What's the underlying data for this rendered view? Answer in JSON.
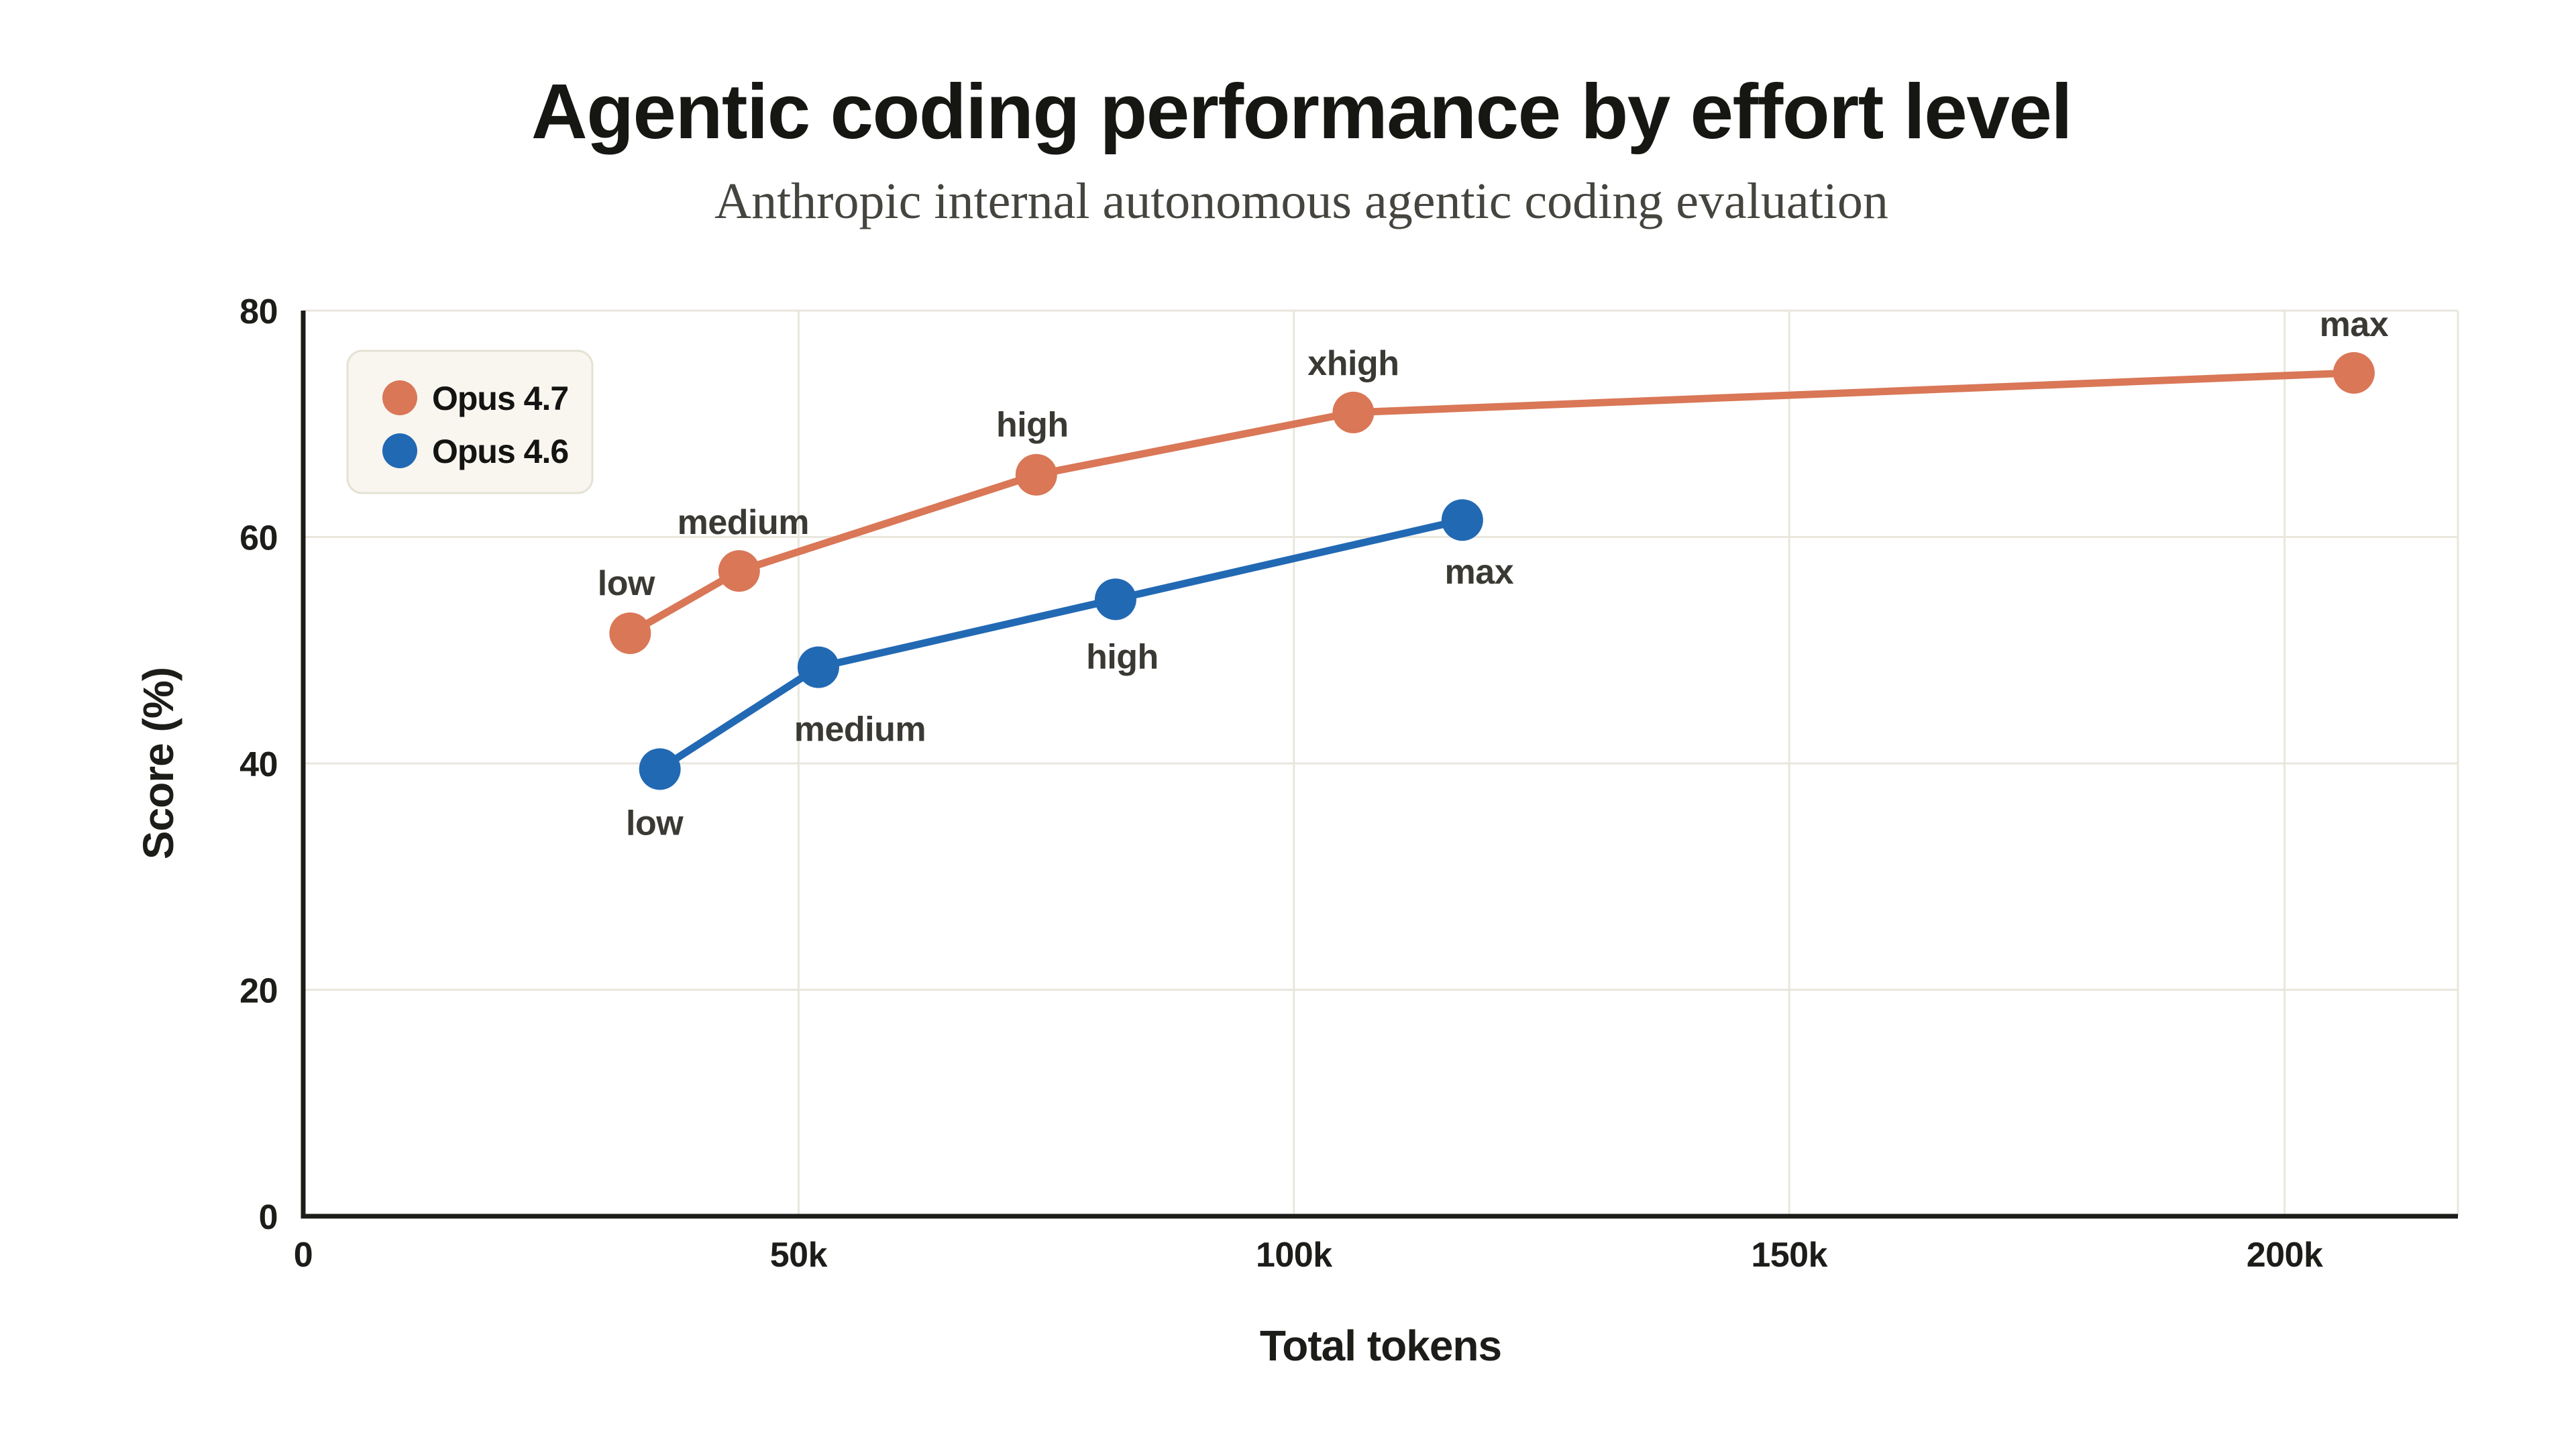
{
  "page": {
    "title": "Agentic coding performance by effort level",
    "subtitle": "Anthropic internal autonomous agentic coding evaluation"
  },
  "chart_data": {
    "type": "line",
    "title": "Agentic coding performance by effort level",
    "subtitle": "Anthropic internal autonomous agentic coding evaluation",
    "xlabel": "Total tokens",
    "ylabel": "Score (%)",
    "xlim": [
      0,
      217500
    ],
    "ylim": [
      0,
      80
    ],
    "grid": true,
    "x_ticks": [
      {
        "v": 0,
        "label": "0"
      },
      {
        "v": 50000,
        "label": "50k"
      },
      {
        "v": 100000,
        "label": "100k"
      },
      {
        "v": 150000,
        "label": "150k"
      },
      {
        "v": 200000,
        "label": "200k"
      }
    ],
    "y_ticks": [
      {
        "v": 0,
        "label": "0"
      },
      {
        "v": 20,
        "label": "20"
      },
      {
        "v": 40,
        "label": "40"
      },
      {
        "v": 60,
        "label": "60"
      },
      {
        "v": 80,
        "label": "80"
      }
    ],
    "legend": {
      "position": "upper-left",
      "entries": [
        {
          "name": "Opus 4.7",
          "color": "#d97757"
        },
        {
          "name": "Opus 4.6",
          "color": "#2269b4"
        }
      ]
    },
    "series": [
      {
        "name": "Opus 4.7",
        "color": "#d97757",
        "points": [
          {
            "x": 33000,
            "y": 51.5,
            "label": "low",
            "dx": -6,
            "dy": -75
          },
          {
            "x": 44000,
            "y": 57,
            "label": "medium",
            "dx": 6,
            "dy": -73
          },
          {
            "x": 74000,
            "y": 65.5,
            "label": "high",
            "dx": -6,
            "dy": -75
          },
          {
            "x": 106000,
            "y": 71,
            "label": "xhigh",
            "dx": 0,
            "dy": -74
          },
          {
            "x": 207000,
            "y": 74.5,
            "label": "max",
            "dx": 0,
            "dy": -73
          }
        ]
      },
      {
        "name": "Opus 4.6",
        "color": "#2269b4",
        "points": [
          {
            "x": 36000,
            "y": 39.5,
            "label": "low",
            "dx": -8,
            "dy": 80
          },
          {
            "x": 52000,
            "y": 48.5,
            "label": "medium",
            "dx": 62,
            "dy": 92
          },
          {
            "x": 82000,
            "y": 54.5,
            "label": "high",
            "dx": 10,
            "dy": 85
          },
          {
            "x": 117000,
            "y": 61.5,
            "label": "max",
            "dx": 25,
            "dy": 77
          }
        ]
      }
    ]
  },
  "colors": {
    "background": "#ffffff",
    "grid": "#e9e6dd",
    "axis_spine": "#1b1b18",
    "tick_text": "#1c1c19",
    "annotation_text": "#3a3934",
    "title_text": "#161613",
    "subtitle_text": "#45443e",
    "legend_fill": "#f8f6ef",
    "legend_border": "#e4e2d4"
  }
}
